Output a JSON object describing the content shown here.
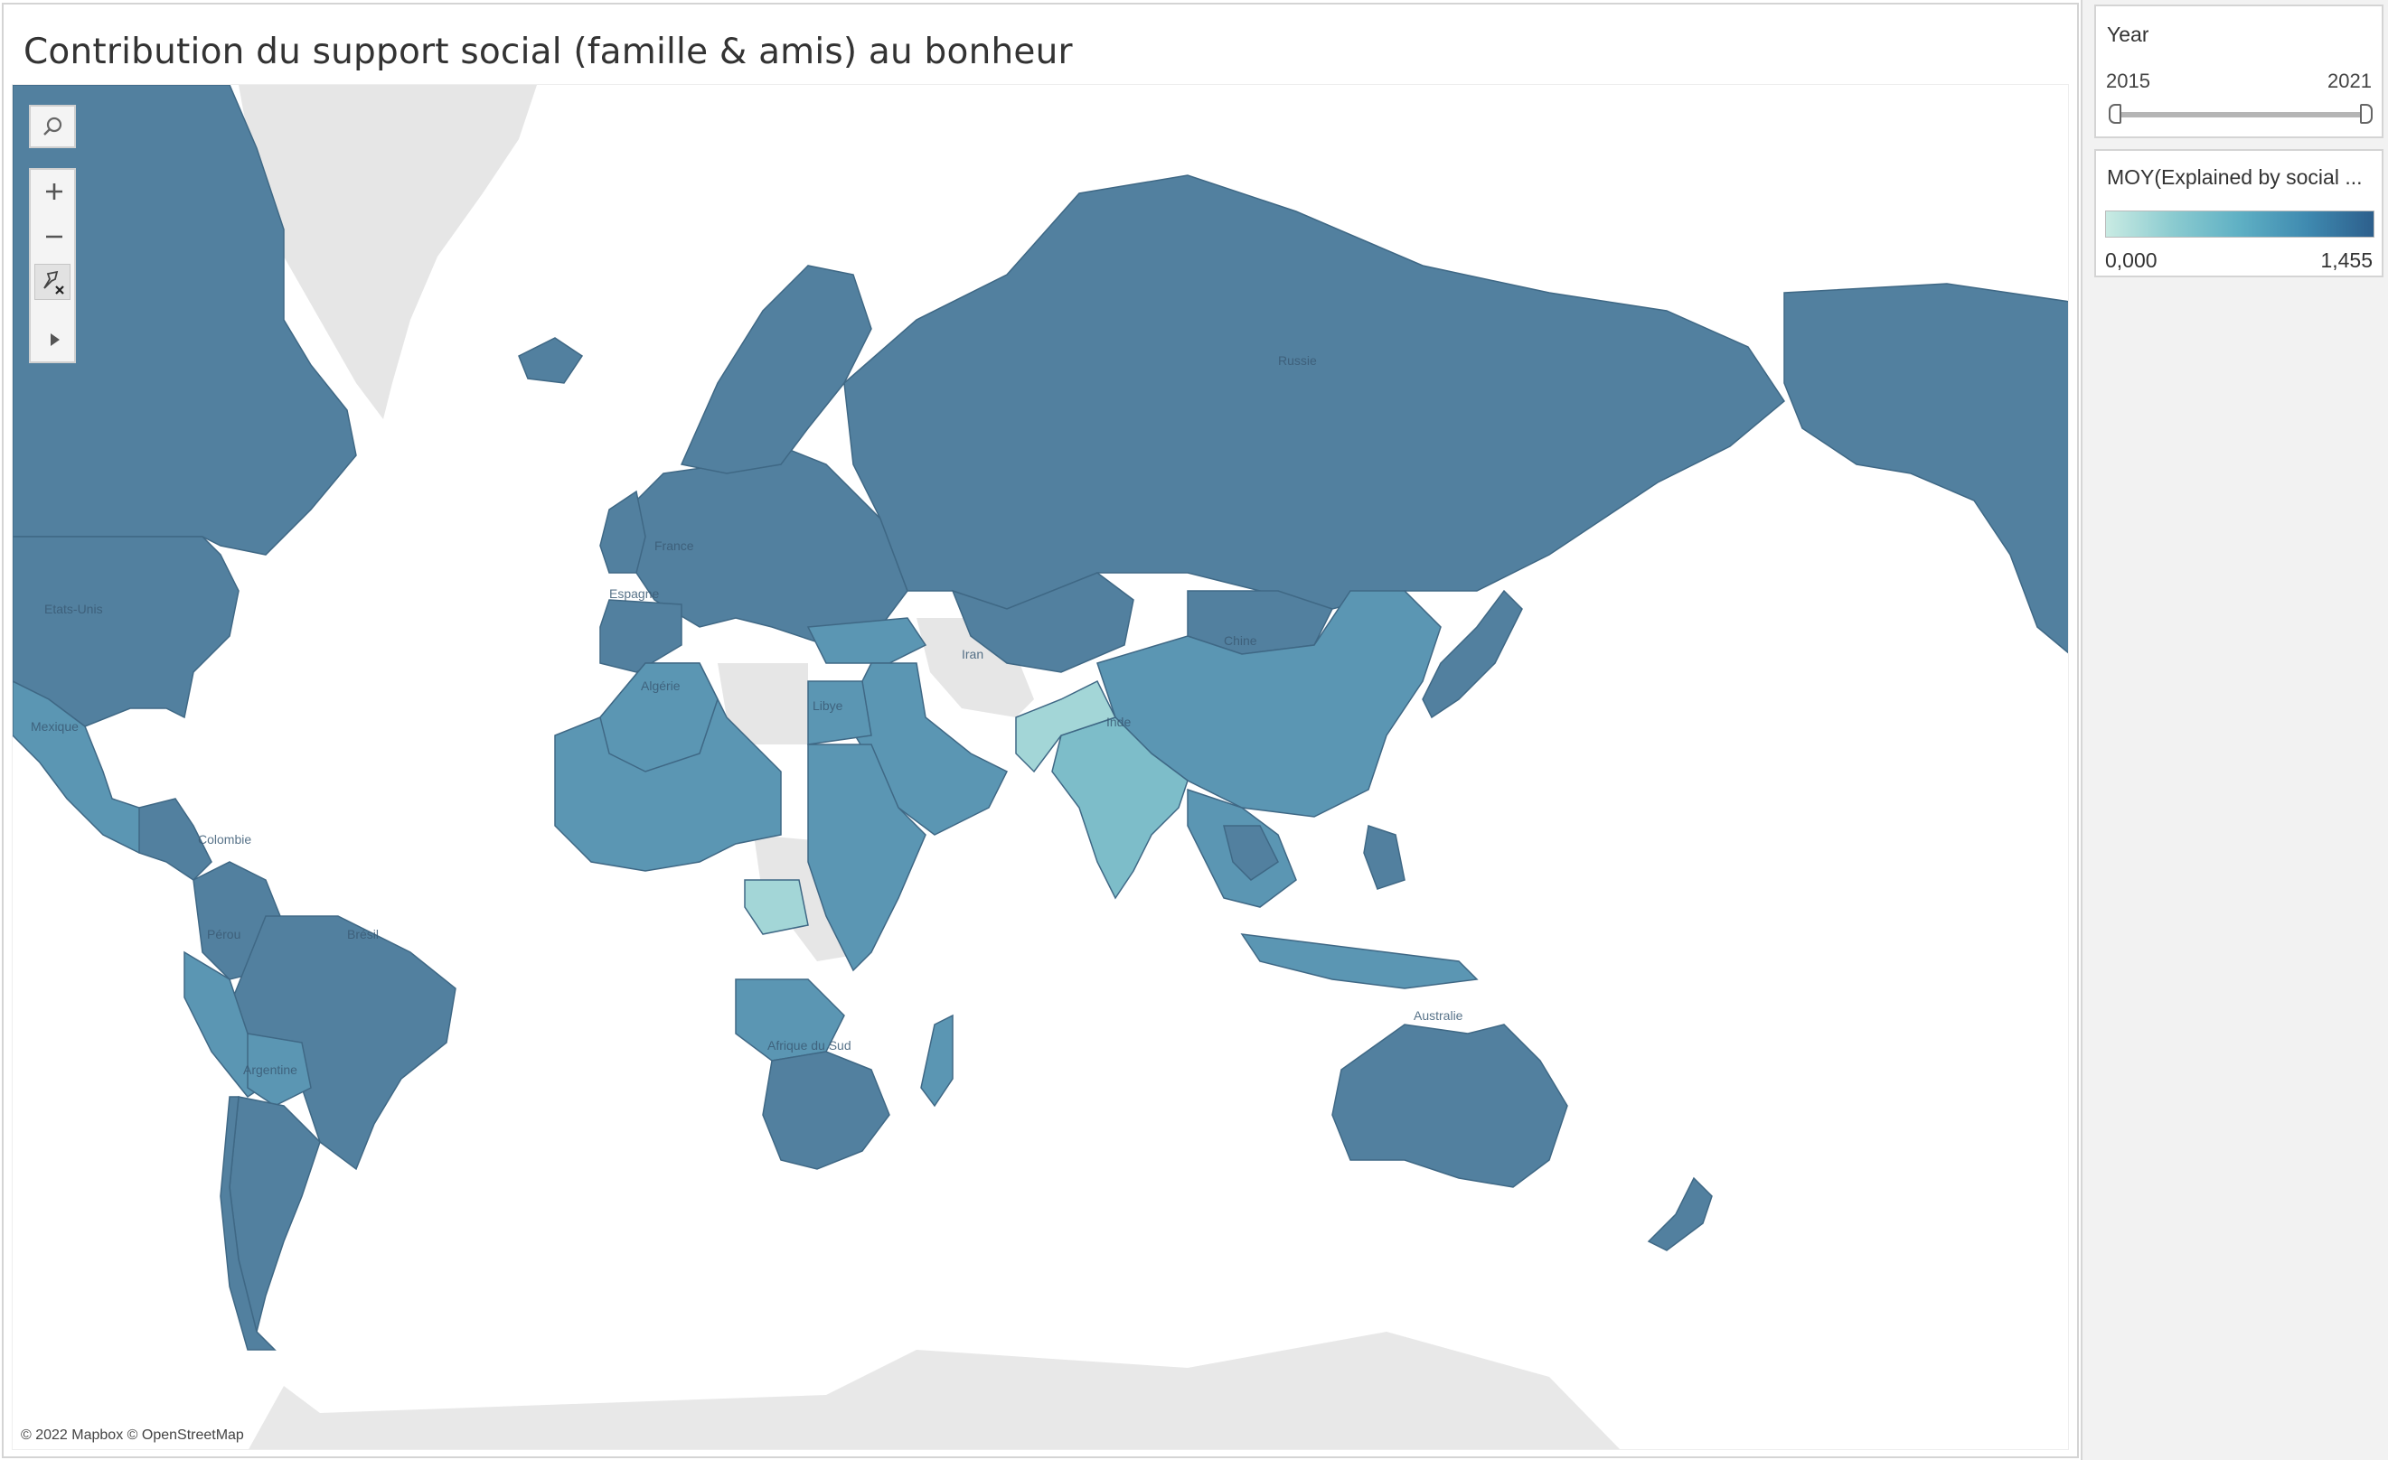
{
  "title": "Contribution du support social (famille & amis) au bonheur",
  "map": {
    "attribution": "© 2022 Mapbox © OpenStreetMap",
    "labels": [
      "Russie",
      "Etats-Unis",
      "Mexique",
      "Colombie",
      "Brésil",
      "Pérou",
      "Argentine",
      "Algérie",
      "Libye",
      "France",
      "Espagne",
      "Chine",
      "Iran",
      "Inde",
      "Australie",
      "Afrique du Sud"
    ],
    "toolbar": {
      "search_icon": "search-icon",
      "zoom_in_icon": "plus-icon",
      "zoom_out_icon": "minus-icon",
      "reset_icon": "pin-reset-icon",
      "more_icon": "play-icon"
    },
    "colors": {
      "dark": "#52809f",
      "mid": "#5b96b3",
      "light": "#7dbdc9",
      "lighter": "#a3d6d7",
      "no_data": "#e6e6e6"
    }
  },
  "filters": {
    "year": {
      "title": "Year",
      "min": "2015",
      "max": "2021",
      "selected_min": 2015,
      "selected_max": 2021
    }
  },
  "legend": {
    "title": "MOY(Explained by social ...",
    "min": "0,000",
    "max": "1,455",
    "color_start": "#c9ebe3",
    "color_end": "#2d5f8c"
  }
}
